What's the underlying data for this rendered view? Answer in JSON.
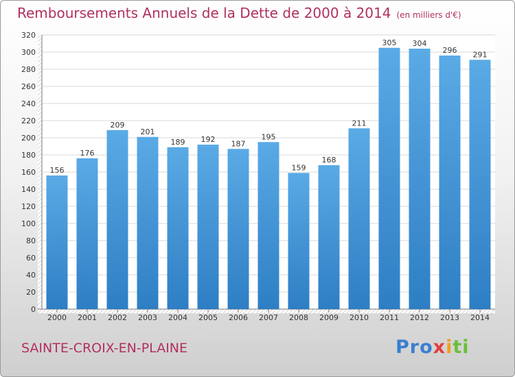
{
  "chart_data": {
    "type": "bar",
    "title": "Remboursements Annuels de la Dette de 2000 à 2014",
    "unit_label": "(en milliers d'€)",
    "categories": [
      "2000",
      "2001",
      "2002",
      "2003",
      "2004",
      "2005",
      "2006",
      "2007",
      "2008",
      "2009",
      "2010",
      "2011",
      "2012",
      "2013",
      "2014"
    ],
    "values": [
      156,
      176,
      209,
      201,
      189,
      192,
      187,
      195,
      159,
      168,
      211,
      305,
      304,
      296,
      291
    ],
    "ylim": [
      0,
      320
    ],
    "yticks": [
      0,
      20,
      40,
      60,
      80,
      100,
      120,
      140,
      160,
      180,
      200,
      220,
      240,
      260,
      280,
      300,
      320
    ],
    "grid": true,
    "bar_color_top": "#5aaae6",
    "bar_color_bottom": "#2e7ec4"
  },
  "footer": {
    "commune": "SAINTE-CROIX-EN-PLAINE",
    "logo": "Proxiti",
    "logo_colors": [
      "#3a7fd0",
      "#e04040",
      "#f0a020",
      "#6abf3a"
    ]
  }
}
